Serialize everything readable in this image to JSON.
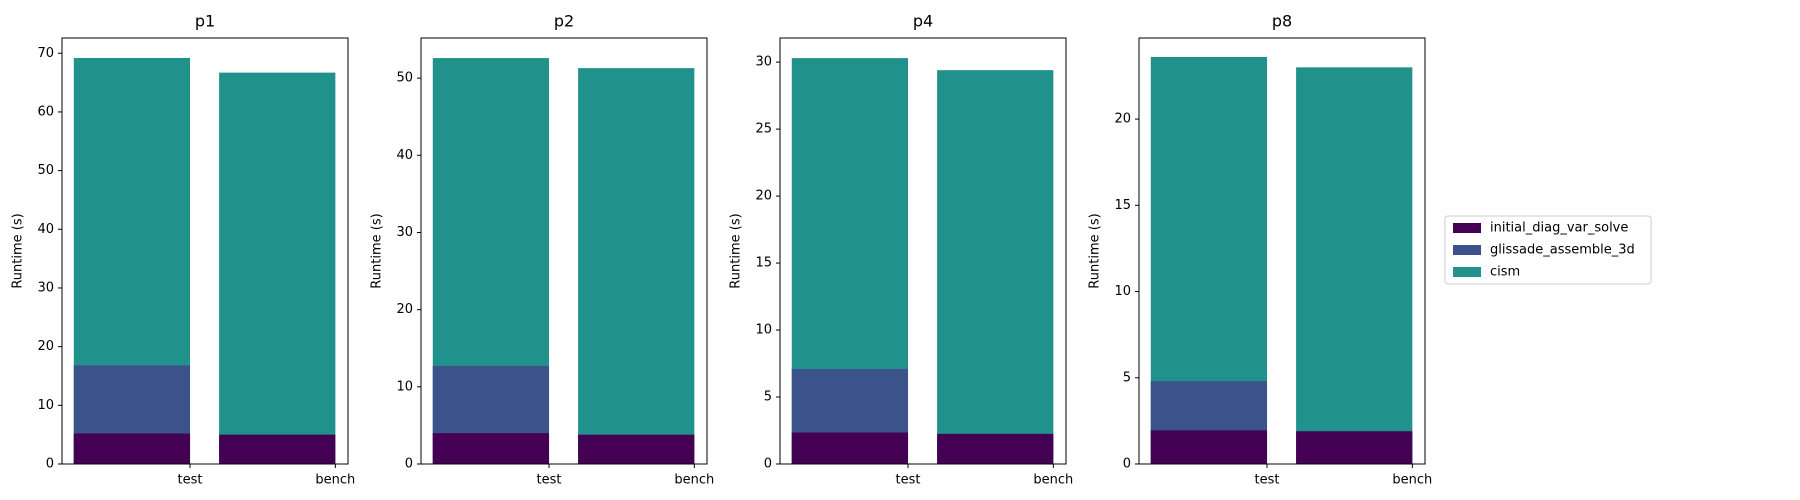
{
  "chart_data": [
    {
      "type": "bar",
      "title": "p1",
      "y_label": "Runtime (s)",
      "categories": [
        "test",
        "bench"
      ],
      "series": [
        {
          "name": "initial_diag_var_solve",
          "color": "#440154",
          "values": [
            5.2,
            5.0
          ]
        },
        {
          "name": "glissade_assemble_3d",
          "color": "#3b528b",
          "values": [
            16.8,
            null
          ]
        },
        {
          "name": "cism",
          "color": "#21918c",
          "values": [
            69.2,
            66.7
          ]
        }
      ],
      "ylim": [
        0,
        72.6
      ],
      "yticks": [
        0,
        10,
        20,
        30,
        40,
        50,
        60,
        70
      ]
    },
    {
      "type": "bar",
      "title": "p2",
      "y_label": "Runtime (s)",
      "categories": [
        "test",
        "bench"
      ],
      "series": [
        {
          "name": "initial_diag_var_solve",
          "color": "#440154",
          "values": [
            4.0,
            3.8
          ]
        },
        {
          "name": "glissade_assemble_3d",
          "color": "#3b528b",
          "values": [
            12.7,
            null
          ]
        },
        {
          "name": "cism",
          "color": "#21918c",
          "values": [
            52.6,
            51.3
          ]
        }
      ],
      "ylim": [
        0,
        55.2
      ],
      "yticks": [
        0,
        10,
        20,
        30,
        40,
        50
      ]
    },
    {
      "type": "bar",
      "title": "p4",
      "y_label": "Runtime (s)",
      "categories": [
        "test",
        "bench"
      ],
      "series": [
        {
          "name": "initial_diag_var_solve",
          "color": "#440154",
          "values": [
            2.35,
            2.25
          ]
        },
        {
          "name": "glissade_assemble_3d",
          "color": "#3b528b",
          "values": [
            7.1,
            null
          ]
        },
        {
          "name": "cism",
          "color": "#21918c",
          "values": [
            30.3,
            29.4
          ]
        }
      ],
      "ylim": [
        0,
        31.8
      ],
      "yticks": [
        0,
        5,
        10,
        15,
        20,
        25,
        30
      ]
    },
    {
      "type": "bar",
      "title": "p8",
      "y_label": "Runtime (s)",
      "categories": [
        "test",
        "bench"
      ],
      "series": [
        {
          "name": "initial_diag_var_solve",
          "color": "#440154",
          "values": [
            1.95,
            1.9
          ]
        },
        {
          "name": "glissade_assemble_3d",
          "color": "#3b528b",
          "values": [
            4.8,
            null
          ]
        },
        {
          "name": "cism",
          "color": "#21918c",
          "values": [
            23.6,
            23.0
          ]
        }
      ],
      "ylim": [
        0,
        24.7
      ],
      "yticks": [
        0,
        5,
        10,
        15,
        20
      ]
    }
  ]
}
